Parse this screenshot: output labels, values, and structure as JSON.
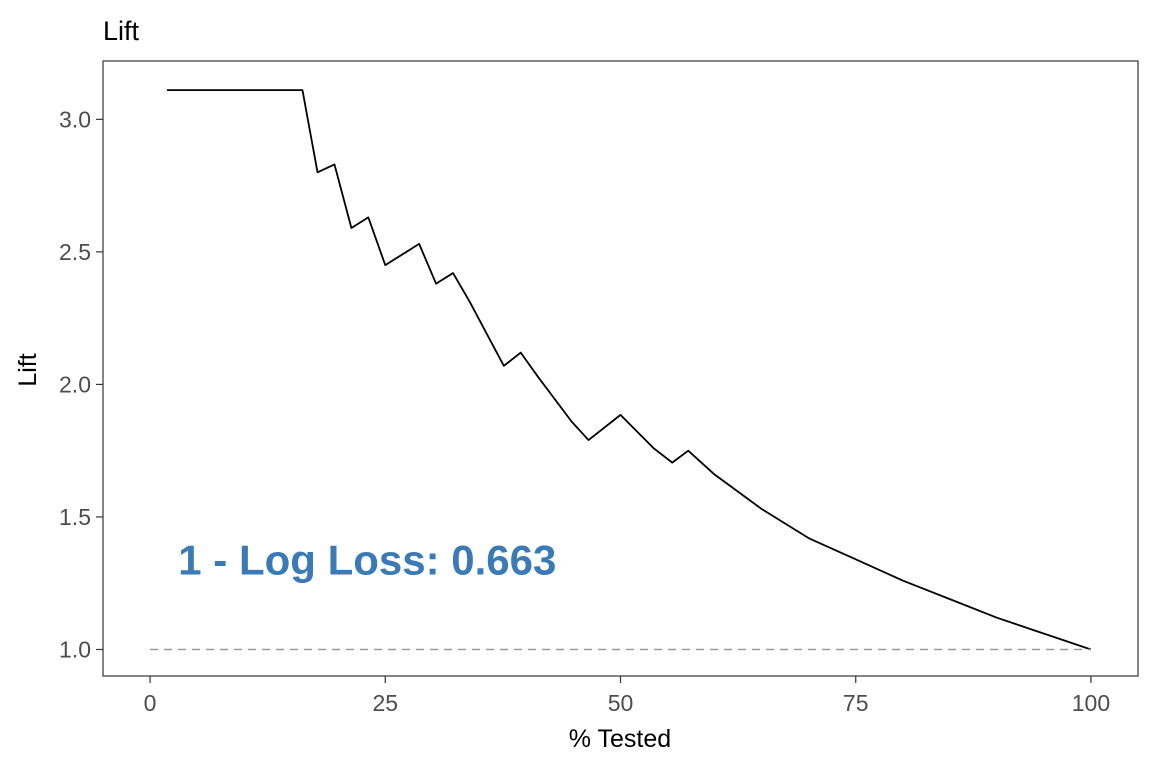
{
  "chart_data": {
    "type": "line",
    "title": "Lift",
    "xlabel": "% Tested",
    "ylabel": "Lift",
    "xlim": [
      -5,
      105
    ],
    "ylim": [
      0.9,
      3.22
    ],
    "x_ticks": [
      0,
      25,
      50,
      75,
      100
    ],
    "y_ticks": [
      1.0,
      1.5,
      2.0,
      2.5,
      3.0
    ],
    "x_tick_labels": [
      "0",
      "25",
      "50",
      "75",
      "100"
    ],
    "y_tick_labels": [
      "1.0",
      "1.5",
      "2.0",
      "2.5",
      "3.0"
    ],
    "grid": false,
    "series": [
      {
        "line_style": "solid",
        "color": "#000000",
        "x": [
          1.8,
          16.2,
          17.8,
          19.6,
          21.4,
          23.2,
          25.0,
          28.6,
          30.4,
          32.2,
          34.0,
          35.8,
          37.6,
          39.4,
          41.2,
          44.8,
          46.6,
          50.0,
          53.5,
          55.5,
          57.2,
          60.0,
          65.0,
          70.0,
          75.0,
          80.0,
          85.0,
          90.0,
          95.0,
          100.0
        ],
        "y": [
          3.11,
          3.11,
          2.8,
          2.83,
          2.59,
          2.63,
          2.45,
          2.53,
          2.38,
          2.42,
          2.31,
          2.19,
          2.07,
          2.12,
          2.03,
          1.86,
          1.79,
          1.885,
          1.76,
          1.705,
          1.75,
          1.66,
          1.53,
          1.42,
          1.34,
          1.26,
          1.19,
          1.12,
          1.06,
          1.0
        ]
      },
      {
        "line_style": "dashed",
        "color": "#999999",
        "x": [
          0,
          100
        ],
        "y": [
          1.0,
          1.0
        ]
      }
    ],
    "annotation": {
      "text": "1 - Log Loss: 0.663",
      "x": 3,
      "y": 1.34,
      "color": "#3a7ab7"
    }
  }
}
